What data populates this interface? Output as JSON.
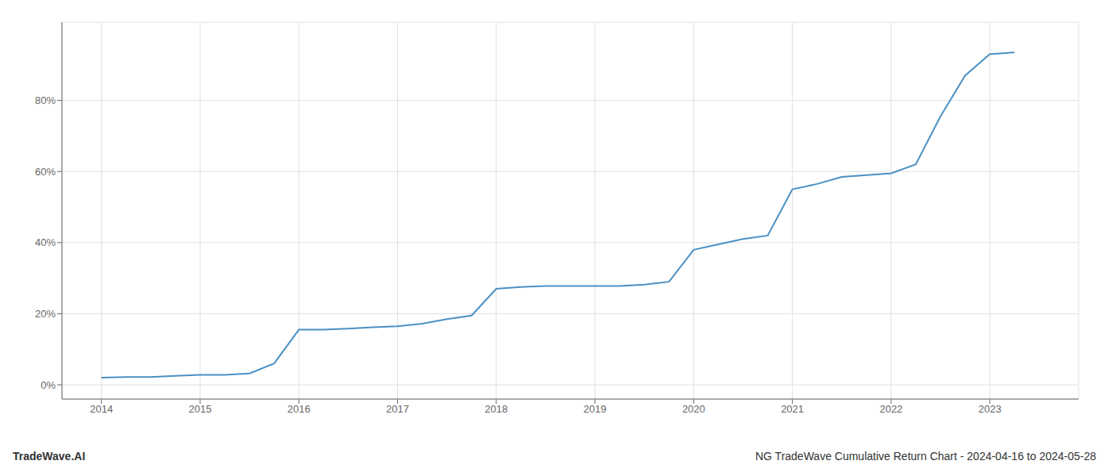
{
  "chart_data": {
    "type": "line",
    "title": "NG TradeWave Cumulative Return Chart - 2024-04-16 to 2024-05-28",
    "annotations": [
      "TradeWave.AI"
    ],
    "x": [
      2014.0,
      2014.25,
      2014.5,
      2014.75,
      2015.0,
      2015.25,
      2015.5,
      2015.75,
      2016.0,
      2016.25,
      2016.5,
      2016.75,
      2017.0,
      2017.25,
      2017.5,
      2017.75,
      2018.0,
      2018.25,
      2018.5,
      2018.75,
      2019.0,
      2019.25,
      2019.5,
      2019.75,
      2020.0,
      2020.25,
      2020.5,
      2020.75,
      2021.0,
      2021.25,
      2021.5,
      2021.75,
      2022.0,
      2022.25,
      2022.5,
      2022.75,
      2023.0,
      2023.25
    ],
    "values": [
      0.02,
      0.022,
      0.022,
      0.025,
      0.028,
      0.028,
      0.032,
      0.06,
      0.155,
      0.155,
      0.158,
      0.162,
      0.165,
      0.172,
      0.185,
      0.195,
      0.27,
      0.275,
      0.278,
      0.278,
      0.278,
      0.278,
      0.282,
      0.29,
      0.38,
      0.395,
      0.41,
      0.42,
      0.55,
      0.565,
      0.585,
      0.59,
      0.595,
      0.62,
      0.755,
      0.87,
      0.93,
      0.935
    ],
    "color": "#4a90c4",
    "xlim": [
      2013.6,
      2023.9
    ],
    "ylim": [
      -0.04,
      1.02
    ],
    "xticks": [
      2014,
      2015,
      2016,
      2017,
      2018,
      2019,
      2020,
      2021,
      2022,
      2023
    ],
    "yticks": [
      {
        "value": 0.0,
        "label": "0%"
      },
      {
        "value": 0.2,
        "label": "20%"
      },
      {
        "value": 0.4,
        "label": "40%"
      },
      {
        "value": 0.6,
        "label": "60%"
      },
      {
        "value": 0.8,
        "label": "80%"
      }
    ],
    "grid": true
  }
}
